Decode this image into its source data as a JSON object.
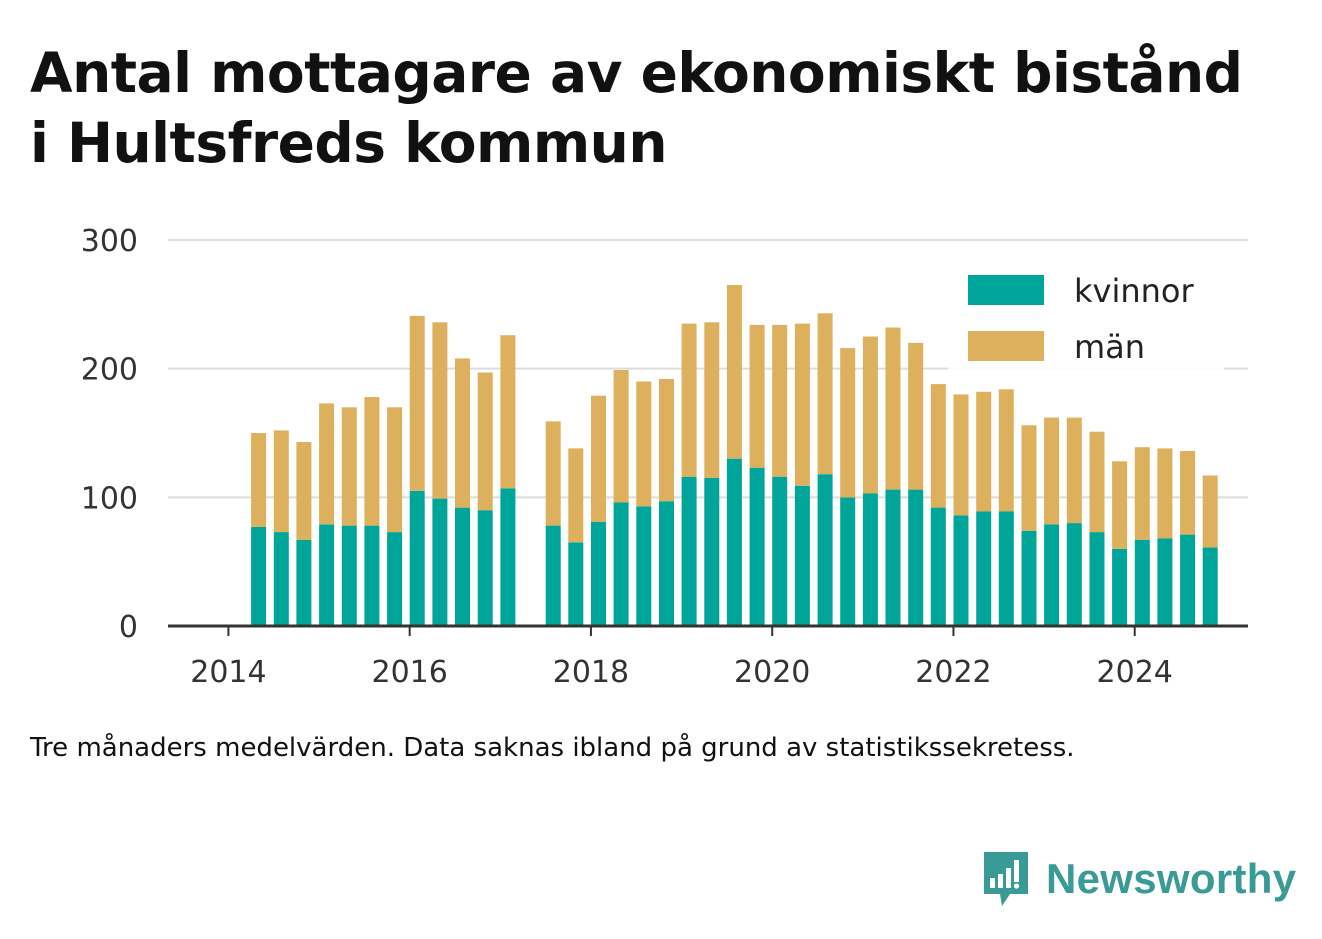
{
  "title_lines": [
    "Antal mottagare av ekonomiskt bistånd",
    "i Hultsfreds kommun"
  ],
  "caption": "Tre månaders medelvärden. Data saknas ibland på grund av statistikssekretess.",
  "brand": "Newsworthy",
  "colors": {
    "kvinnor": "#00a59a",
    "man": "#dcb05c",
    "grid": "#dddddd",
    "axis": "#333333",
    "brand": "#3a9a95"
  },
  "chart_data": {
    "type": "bar",
    "stacked": true,
    "x": [
      "2014-05",
      "2014-08",
      "2014-11",
      "2015-02",
      "2015-05",
      "2015-08",
      "2015-11",
      "2016-02",
      "2016-05",
      "2016-08",
      "2016-11",
      "2017-02",
      "2017-08",
      "2017-11",
      "2018-02",
      "2018-05",
      "2018-08",
      "2018-11",
      "2019-02",
      "2019-05",
      "2019-08",
      "2019-11",
      "2020-02",
      "2020-05",
      "2020-08",
      "2020-11",
      "2021-02",
      "2021-05",
      "2021-08",
      "2021-11",
      "2022-02",
      "2022-05",
      "2022-08",
      "2022-11",
      "2023-02",
      "2023-05",
      "2023-08",
      "2023-11",
      "2024-02",
      "2024-05",
      "2024-08",
      "2024-11"
    ],
    "series": [
      {
        "name": "kvinnor",
        "values": [
          77,
          73,
          67,
          79,
          78,
          78,
          73,
          105,
          99,
          92,
          90,
          107,
          78,
          65,
          81,
          96,
          93,
          97,
          116,
          115,
          130,
          123,
          116,
          109,
          118,
          100,
          103,
          106,
          106,
          92,
          86,
          89,
          89,
          74,
          79,
          80,
          73,
          60,
          67,
          68,
          71,
          61
        ]
      },
      {
        "name": "män",
        "values": [
          73,
          79,
          76,
          94,
          92,
          100,
          97,
          136,
          137,
          116,
          107,
          119,
          81,
          73,
          98,
          103,
          97,
          95,
          119,
          121,
          135,
          111,
          118,
          126,
          125,
          116,
          122,
          126,
          114,
          96,
          94,
          93,
          95,
          82,
          83,
          82,
          78,
          68,
          72,
          70,
          65,
          56
        ]
      }
    ],
    "x_ticks": [
      "2014",
      "2016",
      "2018",
      "2020",
      "2022",
      "2024"
    ],
    "y_ticks": [
      "0",
      "100",
      "200",
      "300"
    ],
    "ylim": [
      0,
      300
    ],
    "xlim": [
      "2013-05",
      "2025-04"
    ],
    "grid": true,
    "legend_position": "top-right",
    "title": "Antal mottagare av ekonomiskt bistånd i Hultsfreds kommun",
    "xlabel": "",
    "ylabel": ""
  }
}
